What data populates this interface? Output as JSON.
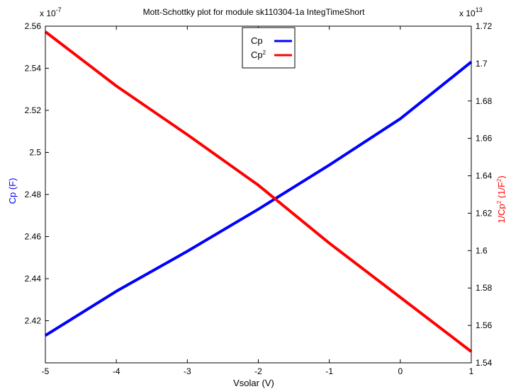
{
  "chart_data": {
    "type": "line",
    "title": "Mott-Schottky plot for module sk110304-1a IntegTimeShort",
    "xlabel": "Vsolar (V)",
    "xlim": [
      -5,
      1
    ],
    "xticks": [
      -5,
      -4,
      -3,
      -2,
      -1,
      0,
      1
    ],
    "left_axis": {
      "label": "Cp (F)",
      "color": "#0000ff",
      "multiplier": "x 10",
      "exponent": "-7",
      "ylim": [
        2.4,
        2.56
      ],
      "ticks": [
        2.42,
        2.44,
        2.46,
        2.48,
        2.5,
        2.52,
        2.54,
        2.56
      ],
      "tick_labels": [
        "2.42",
        "2.44",
        "2.46",
        "2.48",
        "2.5",
        "2.52",
        "2.54",
        "2.56"
      ]
    },
    "right_axis": {
      "label_main": "1/Cp",
      "label_sup1": "2",
      "label_mid": " (1/F",
      "label_sup2": "2",
      "label_end": ")",
      "color": "#ff0000",
      "multiplier": "x 10",
      "exponent": "13",
      "ylim": [
        1.54,
        1.72
      ],
      "ticks": [
        1.54,
        1.56,
        1.58,
        1.6,
        1.62,
        1.64,
        1.66,
        1.68,
        1.7,
        1.72
      ],
      "tick_labels": [
        "1.54",
        "1.56",
        "1.58",
        "1.6",
        "1.62",
        "1.64",
        "1.66",
        "1.68",
        "1.7",
        "1.72"
      ]
    },
    "legend_position": "top-center",
    "series": [
      {
        "name": "Cp",
        "color": "#0000ff",
        "axis": "left",
        "x": [
          -5,
          -4,
          -3,
          -2,
          -1,
          0,
          1
        ],
        "y": [
          2.413,
          2.434,
          2.453,
          2.473,
          2.494,
          2.516,
          2.543
        ]
      },
      {
        "name": "Cp",
        "name_sup": "2",
        "color": "#ff0000",
        "axis": "right",
        "x": [
          -5,
          -4,
          -3,
          -2,
          -1,
          0,
          1
        ],
        "y": [
          1.717,
          1.688,
          1.662,
          1.635,
          1.604,
          1.575,
          1.546
        ]
      }
    ]
  }
}
